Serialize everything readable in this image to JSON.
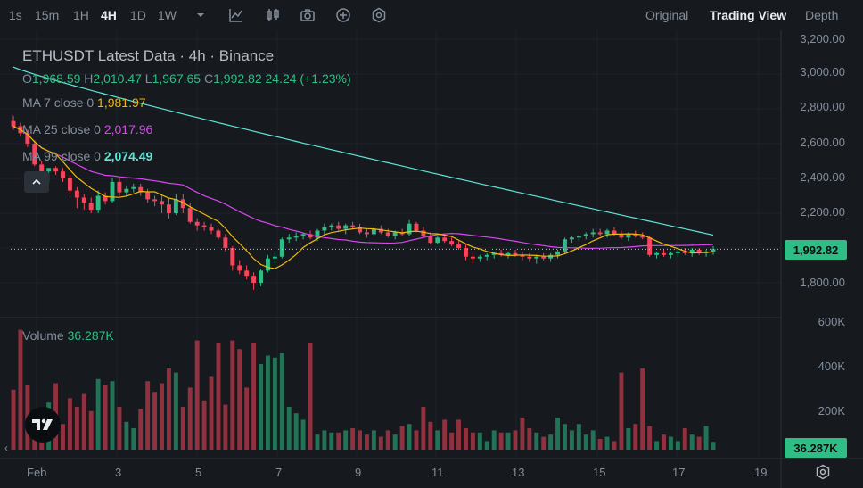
{
  "toolbar": {
    "timeframes": [
      {
        "label": "1s",
        "active": false
      },
      {
        "label": "15m",
        "active": false
      },
      {
        "label": "1H",
        "active": false
      },
      {
        "label": "4H",
        "active": true
      },
      {
        "label": "1D",
        "active": false
      },
      {
        "label": "1W",
        "active": false
      }
    ],
    "icons": [
      "chevron-down-icon",
      "indicators-icon",
      "candle-type-icon",
      "camera-icon",
      "add-icon",
      "settings-icon"
    ],
    "views": [
      {
        "label": "Original",
        "active": false
      },
      {
        "label": "Trading View",
        "active": true
      },
      {
        "label": "Depth",
        "active": false
      }
    ]
  },
  "legend": {
    "title": "ETHUSDT Latest Data · 4h · Binance",
    "open_label": "O",
    "open": "1,968.59",
    "high_label": "H",
    "high": "2,010.47",
    "low_label": "L",
    "low": "1,967.65",
    "close_label": "C",
    "close": "1,992.82",
    "change": "24.24 (+1.23%)",
    "ma7_label": "MA 7 close 0",
    "ma7_value": "1,981.97",
    "ma7_color": "#f0b90b",
    "ma25_label": "MA 25 close 0",
    "ma25_value": "2,017.96",
    "ma25_color": "#d946ef",
    "ma99_label": "MA 99 close 0",
    "ma99_value": "2,074.49",
    "ma99_color": "#5ee6d8"
  },
  "volume": {
    "label": "Volume",
    "value": "36.287K"
  },
  "price_axis": [
    "3,200.00",
    "3,000.00",
    "2,800.00",
    "2,600.00",
    "2,400.00",
    "2,200.00",
    "1,800.00"
  ],
  "volume_axis": [
    "600K",
    "400K",
    "200K"
  ],
  "current_price": "1,992.82",
  "current_volume": "36.287K",
  "time_axis": [
    "Feb",
    "3",
    "5",
    "7",
    "9",
    "11",
    "13",
    "15",
    "17",
    "19"
  ],
  "colors": {
    "up": "#2ebd85",
    "down": "#f6465d",
    "background": "#161a1e"
  },
  "chart_data": {
    "type": "candlestick",
    "symbol": "ETHUSDT",
    "interval": "4h",
    "ylim": [
      1700,
      3200
    ],
    "volume_ylim": [
      0,
      600000
    ],
    "candles": [
      [
        2730,
        2760,
        2680,
        2700,
        280000
      ],
      [
        2700,
        2720,
        2640,
        2660,
        560000
      ],
      [
        2660,
        2680,
        2580,
        2600,
        300000
      ],
      [
        2600,
        2620,
        2470,
        2480,
        160000
      ],
      [
        2480,
        2500,
        2410,
        2440,
        150000
      ],
      [
        2440,
        2460,
        2380,
        2460,
        220000
      ],
      [
        2460,
        2470,
        2420,
        2440,
        310000
      ],
      [
        2440,
        2460,
        2380,
        2400,
        120000
      ],
      [
        2400,
        2420,
        2310,
        2330,
        240000
      ],
      [
        2330,
        2350,
        2230,
        2290,
        200000
      ],
      [
        2290,
        2310,
        2220,
        2260,
        260000
      ],
      [
        2260,
        2290,
        2200,
        2220,
        180000
      ],
      [
        2220,
        2330,
        2200,
        2300,
        330000
      ],
      [
        2300,
        2320,
        2250,
        2270,
        300000
      ],
      [
        2270,
        2400,
        2260,
        2380,
        320000
      ],
      [
        2380,
        2400,
        2300,
        2320,
        200000
      ],
      [
        2320,
        2360,
        2300,
        2340,
        130000
      ],
      [
        2340,
        2370,
        2320,
        2350,
        100000
      ],
      [
        2350,
        2370,
        2300,
        2320,
        190000
      ],
      [
        2320,
        2340,
        2260,
        2280,
        320000
      ],
      [
        2280,
        2300,
        2240,
        2270,
        270000
      ],
      [
        2270,
        2300,
        2200,
        2250,
        310000
      ],
      [
        2250,
        2290,
        2170,
        2200,
        380000
      ],
      [
        2200,
        2310,
        2190,
        2280,
        360000
      ],
      [
        2280,
        2310,
        2200,
        2230,
        200000
      ],
      [
        2230,
        2260,
        2140,
        2150,
        290000
      ],
      [
        2150,
        2170,
        2100,
        2130,
        510000
      ],
      [
        2130,
        2150,
        2100,
        2120,
        230000
      ],
      [
        2120,
        2140,
        2080,
        2100,
        340000
      ],
      [
        2100,
        2110,
        2050,
        2060,
        500000
      ],
      [
        2060,
        2080,
        1980,
        2000,
        210000
      ],
      [
        2000,
        2010,
        1870,
        1900,
        510000
      ],
      [
        1900,
        1930,
        1850,
        1870,
        470000
      ],
      [
        1870,
        1900,
        1820,
        1840,
        290000
      ],
      [
        1840,
        1860,
        1760,
        1800,
        500000
      ],
      [
        1800,
        1880,
        1780,
        1870,
        400000
      ],
      [
        1870,
        1960,
        1860,
        1940,
        440000
      ],
      [
        1940,
        1970,
        1910,
        1950,
        430000
      ],
      [
        1950,
        2060,
        1940,
        2050,
        450000
      ],
      [
        2050,
        2080,
        2030,
        2060,
        200000
      ],
      [
        2060,
        2090,
        2040,
        2070,
        170000
      ],
      [
        2070,
        2090,
        2050,
        2080,
        140000
      ],
      [
        2080,
        2100,
        2050,
        2060,
        500000
      ],
      [
        2060,
        2110,
        2040,
        2100,
        70000
      ],
      [
        2100,
        2140,
        2080,
        2120,
        90000
      ],
      [
        2120,
        2140,
        2100,
        2130,
        80000
      ],
      [
        2130,
        2150,
        2100,
        2110,
        80000
      ],
      [
        2110,
        2140,
        2080,
        2130,
        90000
      ],
      [
        2130,
        2150,
        2110,
        2120,
        100000
      ],
      [
        2120,
        2140,
        2080,
        2090,
        90000
      ],
      [
        2090,
        2110,
        2060,
        2080,
        70000
      ],
      [
        2080,
        2120,
        2070,
        2110,
        90000
      ],
      [
        2110,
        2130,
        2080,
        2090,
        60000
      ],
      [
        2090,
        2110,
        2060,
        2070,
        90000
      ],
      [
        2070,
        2100,
        2050,
        2090,
        70000
      ],
      [
        2090,
        2110,
        2070,
        2080,
        110000
      ],
      [
        2080,
        2160,
        2070,
        2140,
        120000
      ],
      [
        2140,
        2150,
        2090,
        2100,
        90000
      ],
      [
        2100,
        2120,
        2060,
        2070,
        200000
      ],
      [
        2070,
        2090,
        2020,
        2030,
        130000
      ],
      [
        2030,
        2070,
        2020,
        2060,
        90000
      ],
      [
        2060,
        2080,
        2030,
        2040,
        140000
      ],
      [
        2040,
        2060,
        2010,
        2020,
        80000
      ],
      [
        2020,
        2040,
        1990,
        2000,
        140000
      ],
      [
        2000,
        2020,
        1930,
        1950,
        100000
      ],
      [
        1950,
        1970,
        1910,
        1940,
        80000
      ],
      [
        1940,
        1960,
        1920,
        1950,
        80000
      ],
      [
        1950,
        1970,
        1930,
        1960,
        40000
      ],
      [
        1960,
        1980,
        1940,
        1970,
        90000
      ],
      [
        1970,
        1990,
        1950,
        1960,
        80000
      ],
      [
        1960,
        1980,
        1940,
        1970,
        80000
      ],
      [
        1970,
        1990,
        1950,
        1960,
        90000
      ],
      [
        1960,
        1980,
        1930,
        1950,
        150000
      ],
      [
        1950,
        1970,
        1920,
        1940,
        100000
      ],
      [
        1940,
        1960,
        1910,
        1950,
        80000
      ],
      [
        1950,
        1970,
        1930,
        1940,
        60000
      ],
      [
        1940,
        1970,
        1920,
        1960,
        70000
      ],
      [
        1960,
        1990,
        1940,
        1980,
        150000
      ],
      [
        1980,
        2060,
        1970,
        2050,
        120000
      ],
      [
        2050,
        2070,
        2030,
        2060,
        90000
      ],
      [
        2060,
        2080,
        2040,
        2070,
        120000
      ],
      [
        2070,
        2090,
        2050,
        2080,
        70000
      ],
      [
        2080,
        2110,
        2060,
        2090,
        90000
      ],
      [
        2090,
        2110,
        2070,
        2080,
        50000
      ],
      [
        2080,
        2110,
        2060,
        2100,
        60000
      ],
      [
        2100,
        2120,
        2070,
        2080,
        40000
      ],
      [
        2080,
        2100,
        2050,
        2060,
        360000
      ],
      [
        2060,
        2090,
        2040,
        2080,
        100000
      ],
      [
        2080,
        2100,
        2060,
        2070,
        120000
      ],
      [
        2070,
        2090,
        2050,
        2060,
        380000
      ],
      [
        2060,
        2070,
        1950,
        1960,
        110000
      ],
      [
        1960,
        1980,
        1940,
        1970,
        40000
      ],
      [
        1970,
        1990,
        1950,
        1960,
        70000
      ],
      [
        1960,
        1980,
        1940,
        1970,
        60000
      ],
      [
        1970,
        1990,
        1950,
        1980,
        40000
      ],
      [
        1980,
        2000,
        1960,
        1970,
        100000
      ],
      [
        1970,
        2000,
        1950,
        1990,
        70000
      ],
      [
        1990,
        2000,
        1960,
        1970,
        60000
      ],
      [
        1970,
        1990,
        1950,
        1980,
        110000
      ],
      [
        1980,
        2010,
        1960,
        1993,
        36287
      ]
    ],
    "ma_series": [
      {
        "name": "MA 7 close 0",
        "color": "#f0b90b",
        "last": 1981.97
      },
      {
        "name": "MA 25 close 0",
        "color": "#d946ef",
        "last": 2017.96
      },
      {
        "name": "MA 99 close 0",
        "color": "#5ee6d8",
        "last": 2074.49
      }
    ]
  }
}
